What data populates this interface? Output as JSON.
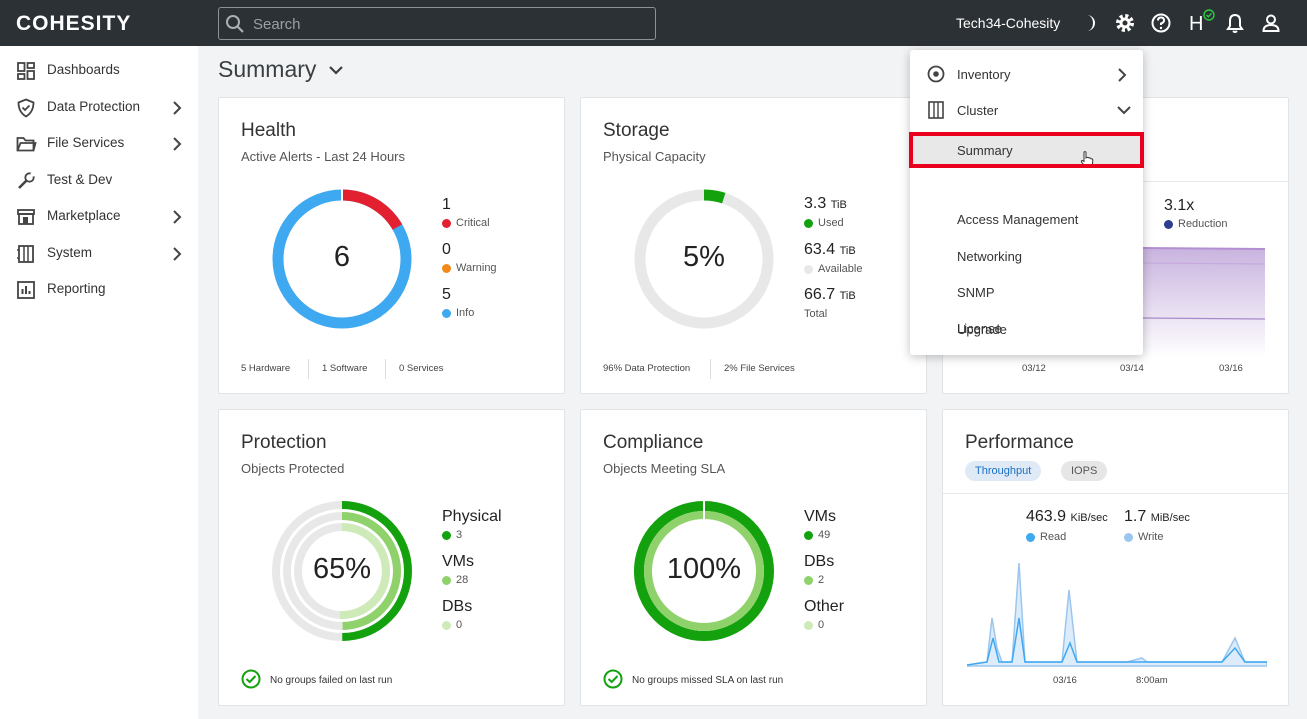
{
  "app": {
    "logo": "COHESITY",
    "cluster_name": "Tech34-Cohesity"
  },
  "search": {
    "placeholder": "Search"
  },
  "topbar_icons": [
    "moon-icon",
    "gear-icon",
    "help-icon",
    "health-icon",
    "bell-icon",
    "user-icon"
  ],
  "health_badge_letter": "H",
  "sidebar": {
    "items": [
      {
        "label": "Dashboards",
        "icon": "dashboard-icon",
        "chevron": false
      },
      {
        "label": "Data Protection",
        "icon": "shield-icon",
        "chevron": true
      },
      {
        "label": "File Services",
        "icon": "folder-icon",
        "chevron": true
      },
      {
        "label": "Test & Dev",
        "icon": "wrench-icon",
        "chevron": false
      },
      {
        "label": "Marketplace",
        "icon": "store-icon",
        "chevron": true
      },
      {
        "label": "System",
        "icon": "system-icon",
        "chevron": true
      },
      {
        "label": "Reporting",
        "icon": "chart-icon",
        "chevron": false
      }
    ]
  },
  "page": {
    "title": "Summary"
  },
  "health": {
    "title": "Health",
    "subtitle": "Active Alerts - Last 24 Hours",
    "total": "6",
    "legend": [
      {
        "value": "1",
        "label": "Critical",
        "color": "#e3202f"
      },
      {
        "value": "0",
        "label": "Warning",
        "color": "#f28a1b"
      },
      {
        "value": "5",
        "label": "Info",
        "color": "#3ea8f0"
      }
    ],
    "footer": [
      "5 Hardware",
      "1 Software",
      "0 Services"
    ]
  },
  "storage": {
    "title": "Storage",
    "subtitle": "Physical Capacity",
    "percent": "5%",
    "used_fraction": 0.05,
    "legend": [
      {
        "value": "3.3",
        "unit": "TiB",
        "label": "Used",
        "color": "#13a10e"
      },
      {
        "value": "63.4",
        "unit": "TiB",
        "label": "Available",
        "color": "#e8e8e8"
      },
      {
        "value": "66.7",
        "unit": "TiB",
        "label": "Total",
        "color": ""
      }
    ],
    "footer": [
      "96% Data Protection",
      "2% File Services"
    ]
  },
  "efficiency": {
    "reduction_value": "3.1x",
    "reduction_label": "Reduction",
    "reduction_color": "#2c3e8f",
    "x_ticks": [
      "03/12",
      "03/14",
      "03/16"
    ]
  },
  "protection": {
    "title": "Protection",
    "subtitle": "Objects Protected",
    "percent": "65%",
    "legend": [
      {
        "value": "Physical",
        "count": "3",
        "color": "#13a10e"
      },
      {
        "value": "VMs",
        "count": "28",
        "color": "#8fd16a"
      },
      {
        "value": "DBs",
        "count": "0",
        "color": "#cdeab8"
      }
    ],
    "status": "No groups failed on last run"
  },
  "compliance": {
    "title": "Compliance",
    "subtitle": "Objects Meeting SLA",
    "percent": "100%",
    "legend": [
      {
        "value": "VMs",
        "count": "49",
        "color": "#13a10e"
      },
      {
        "value": "DBs",
        "count": "2",
        "color": "#8fd16a"
      },
      {
        "value": "Other",
        "count": "0",
        "color": "#cdeab8"
      }
    ],
    "status": "No groups missed SLA on last run"
  },
  "performance": {
    "title": "Performance",
    "tabs": [
      "Throughput",
      "IOPS"
    ],
    "read_value": "463.9",
    "read_unit": "KiB/sec",
    "read_label": "Read",
    "read_color": "#3ea8f0",
    "write_value": "1.7",
    "write_unit": "MiB/sec",
    "write_label": "Write",
    "write_color": "#9cc6ee",
    "x_ticks": [
      "03/16",
      "8:00am"
    ]
  },
  "dropdown": {
    "items": [
      {
        "label": "Inventory",
        "icon": "inventory-icon",
        "chevron": "right"
      },
      {
        "label": "Cluster",
        "icon": "cluster-icon",
        "chevron": "down"
      },
      {
        "label": "Summary",
        "selected": true
      },
      {
        "label": "Access Management"
      },
      {
        "label": "Networking"
      },
      {
        "label": "SNMP"
      },
      {
        "label": "Upgrade"
      },
      {
        "label": "License"
      }
    ]
  },
  "colors": {
    "topbar": "#2b3135",
    "highlight": "#e8001c",
    "green": "#13a10e"
  }
}
